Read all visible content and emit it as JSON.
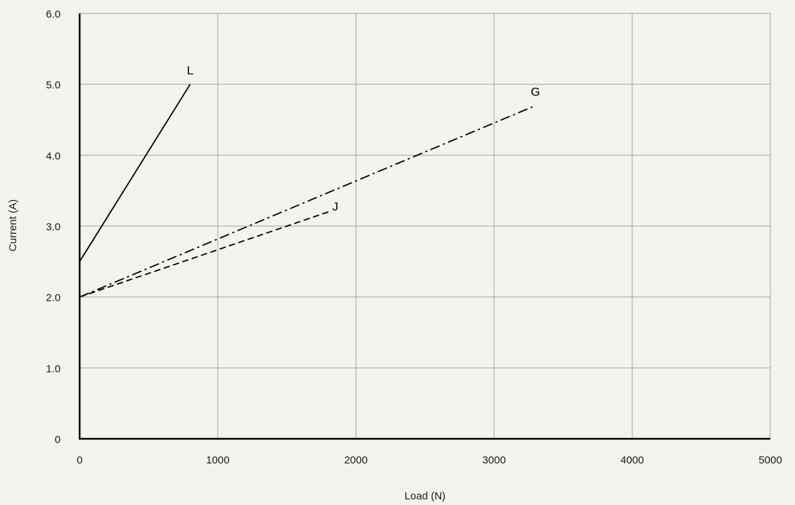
{
  "chart_data": {
    "type": "line",
    "title": "",
    "xlabel": "Load (N)",
    "ylabel": "Current (A)",
    "xlim": [
      0,
      5000
    ],
    "ylim": [
      0,
      6
    ],
    "x_ticks": [
      0,
      1000,
      2000,
      3000,
      4000,
      5000
    ],
    "x_tick_labels": [
      "0",
      "1000",
      "2000",
      "3000",
      "4000",
      "5000"
    ],
    "y_ticks": [
      0,
      1,
      2,
      3,
      4,
      5,
      6
    ],
    "y_tick_labels": [
      "0",
      "1.0",
      "2.0",
      "3.0",
      "4.0",
      "5.0",
      "6.0"
    ],
    "grid": true,
    "series": [
      {
        "name": "L",
        "style": "solid",
        "x": [
          0,
          800
        ],
        "y": [
          2.5,
          5.0
        ]
      },
      {
        "name": "J",
        "style": "dashed",
        "x": [
          0,
          1800
        ],
        "y": [
          2.0,
          3.2
        ]
      },
      {
        "name": "G",
        "style": "dashdot",
        "x": [
          0,
          3300
        ],
        "y": [
          2.0,
          4.7
        ]
      }
    ]
  }
}
